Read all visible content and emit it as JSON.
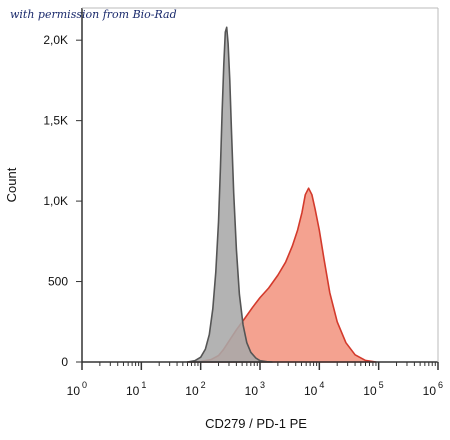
{
  "watermark": "with permission from Bio-Rad",
  "chart_data": {
    "type": "area",
    "xlabel": "CD279 / PD-1 PE",
    "ylabel": "Count",
    "x_scale": "log",
    "xlim": [
      1,
      1000000
    ],
    "ylim": [
      0,
      2200
    ],
    "y_ticks": [
      {
        "value": 0,
        "label": "0"
      },
      {
        "value": 500,
        "label": "500"
      },
      {
        "value": 1000,
        "label": "1,0K"
      },
      {
        "value": 1500,
        "label": "1,5K"
      },
      {
        "value": 2000,
        "label": "2,0K"
      }
    ],
    "x_ticks": [
      {
        "value": 1,
        "base": "10",
        "exp": "0"
      },
      {
        "value": 10,
        "base": "10",
        "exp": "1"
      },
      {
        "value": 100,
        "base": "10",
        "exp": "2"
      },
      {
        "value": 1000,
        "base": "10",
        "exp": "3"
      },
      {
        "value": 10000,
        "base": "10",
        "exp": "4"
      },
      {
        "value": 100000,
        "base": "10",
        "exp": "5"
      },
      {
        "value": 1000000,
        "base": "10",
        "exp": "6"
      }
    ],
    "grid": false,
    "series": [
      {
        "color": "#f4a290",
        "stroke": "#d33a2c",
        "points": [
          [
            60,
            0
          ],
          [
            100,
            4
          ],
          [
            150,
            15
          ],
          [
            200,
            40
          ],
          [
            240,
            75
          ],
          [
            300,
            130
          ],
          [
            400,
            200
          ],
          [
            550,
            270
          ],
          [
            750,
            340
          ],
          [
            1000,
            400
          ],
          [
            1400,
            460
          ],
          [
            2000,
            540
          ],
          [
            2700,
            620
          ],
          [
            3500,
            720
          ],
          [
            4300,
            820
          ],
          [
            5100,
            930
          ],
          [
            5800,
            1040
          ],
          [
            6600,
            1080
          ],
          [
            7500,
            1040
          ],
          [
            8500,
            950
          ],
          [
            10000,
            820
          ],
          [
            12000,
            640
          ],
          [
            15000,
            430
          ],
          [
            20000,
            250
          ],
          [
            28000,
            120
          ],
          [
            40000,
            45
          ],
          [
            60000,
            10
          ],
          [
            90000,
            0
          ]
        ]
      },
      {
        "color": "#a9a9a9",
        "stroke": "#555555",
        "points": [
          [
            60,
            0
          ],
          [
            80,
            8
          ],
          [
            100,
            30
          ],
          [
            120,
            80
          ],
          [
            140,
            170
          ],
          [
            160,
            330
          ],
          [
            180,
            560
          ],
          [
            200,
            870
          ],
          [
            215,
            1200
          ],
          [
            230,
            1550
          ],
          [
            245,
            1850
          ],
          [
            260,
            2050
          ],
          [
            275,
            2080
          ],
          [
            290,
            1980
          ],
          [
            310,
            1750
          ],
          [
            330,
            1450
          ],
          [
            360,
            1050
          ],
          [
            400,
            700
          ],
          [
            450,
            420
          ],
          [
            520,
            230
          ],
          [
            600,
            120
          ],
          [
            700,
            60
          ],
          [
            850,
            25
          ],
          [
            1000,
            8
          ],
          [
            1300,
            2
          ],
          [
            1600,
            0
          ]
        ]
      }
    ]
  }
}
